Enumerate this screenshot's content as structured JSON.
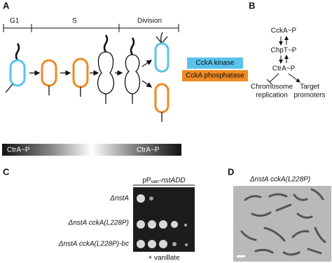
{
  "panel_a": {
    "label": "A",
    "phases": [
      "G1",
      "S",
      "Division"
    ],
    "legend": [
      "CckA kinase",
      "CckA phosphatase"
    ],
    "gradients": [
      "CtrA~P",
      "CtrA~P"
    ]
  },
  "panel_b": {
    "label": "B",
    "nodes": [
      "CckA~P",
      "ChpT~P",
      "CtrA~P"
    ],
    "outputs": [
      [
        "Chromosome",
        "replication"
      ],
      [
        "Target",
        "promoters"
      ]
    ]
  },
  "panel_c": {
    "label": "C",
    "header": [
      "pP",
      "van",
      "-nstADD"
    ],
    "strains": [
      "ΔnstA",
      "ΔnstA cckA(L228P)",
      "ΔnstA cckA(L228P)-bc"
    ],
    "footer": "+ vanillate"
  },
  "panel_d": {
    "label": "D",
    "title": "ΔnstA cckA(L228P)"
  }
}
